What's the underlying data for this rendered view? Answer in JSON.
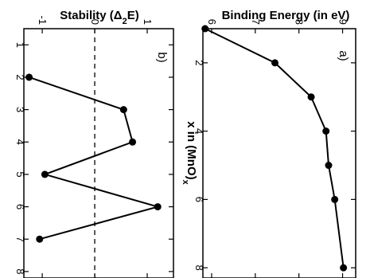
{
  "chart_data": [
    {
      "type": "line",
      "panel_label": "a)",
      "title": "Binding Energy (in eV)",
      "xlabel": "x in (MnO)_x",
      "xlim": [
        1,
        8.3
      ],
      "ylim": [
        5.8,
        9.3
      ],
      "x_ticks": [
        2,
        4,
        6,
        8
      ],
      "y_ticks": [
        6,
        7,
        8,
        9
      ],
      "series": [
        {
          "x": [
            1,
            2,
            3,
            4,
            5,
            6,
            8
          ],
          "y": [
            5.85,
            7.45,
            8.28,
            8.62,
            8.68,
            8.82,
            9.02
          ]
        }
      ]
    },
    {
      "type": "line",
      "panel_label": "b)",
      "title": "Stability (Δ2E)",
      "xlabel": "x in (MnO)x",
      "xlim": [
        0.5,
        8.2
      ],
      "ylim": [
        -1.35,
        1.5
      ],
      "x_ticks": [
        1,
        2,
        3,
        4,
        5,
        6,
        7,
        8
      ],
      "y_ticks": [
        -1,
        0,
        1
      ],
      "reference_line": {
        "y": 0,
        "style": "dashed"
      },
      "series": [
        {
          "x": [
            2,
            3,
            4,
            5,
            6,
            7
          ],
          "y": [
            -1.25,
            0.55,
            0.72,
            -0.95,
            1.2,
            -1.05
          ]
        }
      ]
    }
  ],
  "text": {
    "title_a": "Binding Energy (in eV)",
    "title_b_main": "Stability (Δ",
    "title_b_sub": "2",
    "title_b_end": "E)",
    "xlabel_main": "x in (MnO)",
    "xlabel_sub": "x"
  }
}
